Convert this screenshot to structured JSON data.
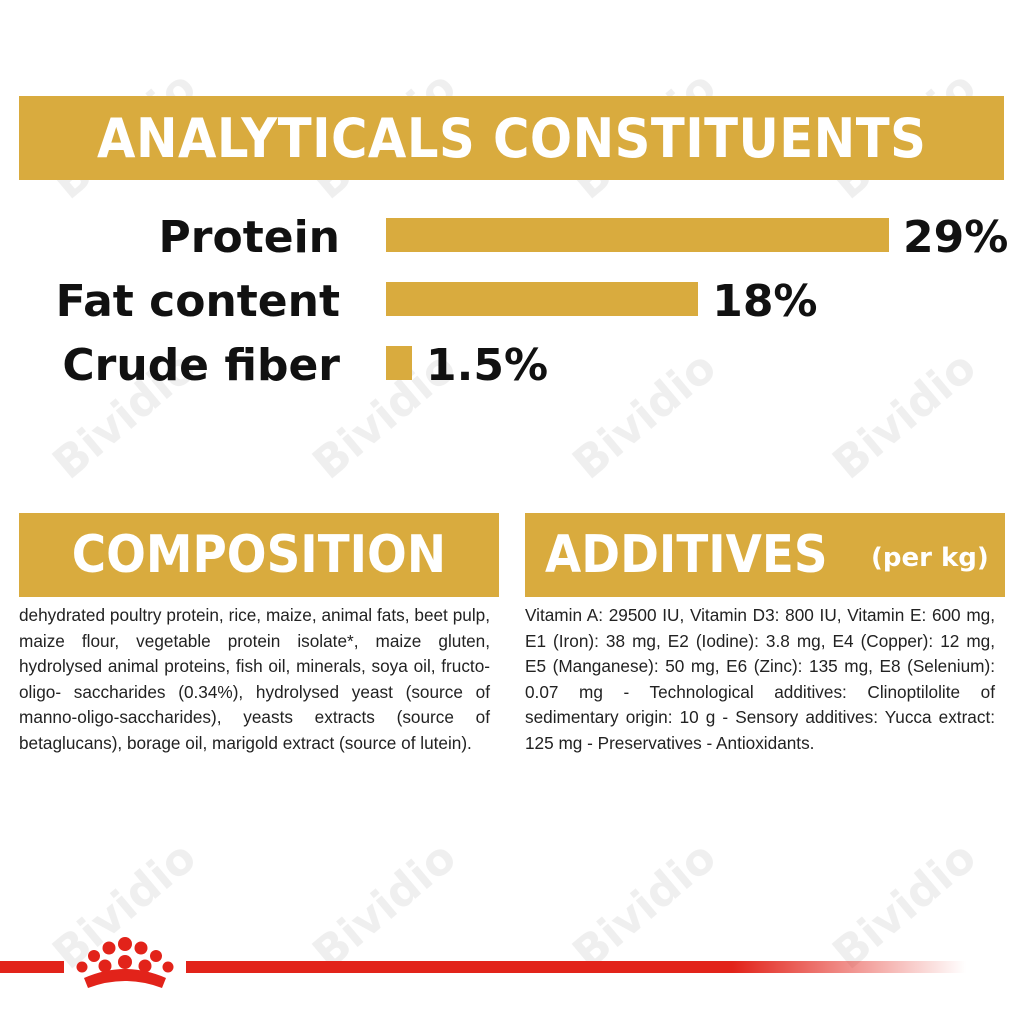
{
  "headers": {
    "analytics": "ANALYTICALS CONSTITUENTS",
    "composition": "COMPOSITION",
    "additives": "ADDITIVES",
    "additives_unit": "(per kg)"
  },
  "chart_data": {
    "type": "bar",
    "orientation": "horizontal",
    "title": "ANALYTICALS CONSTITUENTS",
    "categories": [
      "Protein",
      "Fat content",
      "Crude fiber"
    ],
    "values": [
      29,
      18,
      1.5
    ],
    "value_labels": [
      "29%",
      "18%",
      "1.5%"
    ],
    "unit": "%",
    "bar_color": "#d9ab3e",
    "grid": false,
    "axes_visible": false
  },
  "composition_text": "dehydrated poultry protein, rice, maize, animal fats, beet pulp, maize flour, vegetable protein isolate*, maize gluten, hydrolysed animal proteins, fish oil, minerals, soya oil, fructo-oligo- saccharides (0.34%), hydrolysed yeast (source of manno-oligo-saccharides), yeasts extracts (source of betaglucans), borage oil, marigold extract (source of lutein).",
  "additives_text": "Vitamin A: 29500 IU, Vitamin D3: 800 IU, Vitamin E: 600 mg, E1 (Iron): 38 mg, E2 (Iodine): 3.8 mg, E4 (Copper): 12 mg, E5 (Manganese): 50 mg, E6 (Zinc): 135 mg, E8 (Selenium): 0.07 mg - Technological additives: Clinoptilolite of sedimentary origin: 10 g - Sensory additives: Yucca extract: 125 mg - Preservatives - Antioxidants.",
  "watermark": "Bividio",
  "colors": {
    "gold": "#d9ab3e",
    "brand_red": "#e2231a",
    "text": "#111111"
  },
  "logo_icon": "royal-canin-crown-icon"
}
